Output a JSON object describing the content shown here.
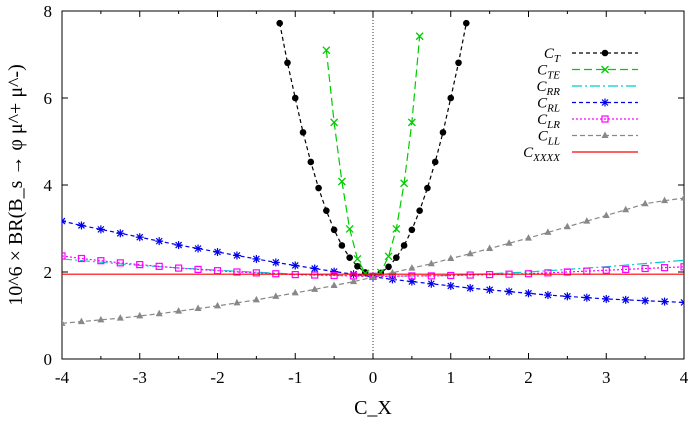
{
  "chart_data": {
    "type": "line",
    "xlabel": "C_X",
    "ylabel": "10^6 × BR(B_s → φ μ^+ μ^-)",
    "xlim": [
      -4,
      4
    ],
    "ylim": [
      0,
      8
    ],
    "xticks": [
      -4,
      -3,
      -2,
      -1,
      0,
      1,
      2,
      3,
      4
    ],
    "yticks": [
      0,
      2,
      4,
      6,
      8
    ],
    "xtick_labels": [
      "-4",
      "-3",
      "-2",
      "-1",
      "0",
      "1",
      "2",
      "3",
      "4"
    ],
    "ytick_labels": [
      "0",
      "2",
      "4",
      "6",
      "8"
    ],
    "vertical_reference_line": 0,
    "grid": false,
    "legend_position": "top-right",
    "series": [
      {
        "name": "C_T",
        "color": "#000000",
        "dash": "4,3",
        "marker": "dot",
        "x": [
          -1.2,
          -1.1,
          -1.0,
          -0.9,
          -0.8,
          -0.7,
          -0.6,
          -0.5,
          -0.4,
          -0.3,
          -0.2,
          -0.1,
          0,
          0.1,
          0.2,
          0.3,
          0.4,
          0.5,
          0.6,
          0.7,
          0.8,
          0.9,
          1.0,
          1.1,
          1.2
        ],
        "values": [
          7.72,
          6.81,
          6.0,
          5.21,
          4.53,
          3.93,
          3.41,
          2.97,
          2.61,
          2.33,
          2.13,
          1.99,
          1.9,
          1.98,
          2.12,
          2.33,
          2.61,
          2.97,
          3.41,
          3.93,
          4.53,
          5.21,
          6.0,
          6.81,
          7.72
        ]
      },
      {
        "name": "C_TE",
        "color": "#00cc00",
        "dash": "8,4",
        "marker": "x",
        "x": [
          -0.6,
          -0.5,
          -0.4,
          -0.3,
          -0.2,
          -0.1,
          0,
          0.1,
          0.2,
          0.3,
          0.4,
          0.5,
          0.6
        ],
        "values": [
          7.1,
          5.44,
          4.08,
          2.99,
          2.3,
          1.97,
          1.9,
          1.99,
          2.36,
          2.99,
          4.04,
          5.44,
          7.42
        ]
      },
      {
        "name": "C_RR",
        "color": "#00cccc",
        "dash": "10,3,2,3",
        "marker": "none",
        "x": [
          -4,
          -3,
          -2,
          -1,
          0,
          1,
          2,
          3,
          4
        ],
        "values": [
          2.3,
          2.15,
          2.04,
          1.95,
          1.9,
          1.92,
          2.0,
          2.12,
          2.27
        ]
      },
      {
        "name": "C_RL",
        "color": "#0000ee",
        "dash": "4,3",
        "marker": "asterisk",
        "x": [
          -4,
          -3.75,
          -3.5,
          -3.25,
          -3,
          -2.75,
          -2.5,
          -2.25,
          -2,
          -1.75,
          -1.5,
          -1.25,
          -1,
          -0.75,
          -0.5,
          -0.25,
          0,
          0.25,
          0.5,
          0.75,
          1,
          1.25,
          1.5,
          1.75,
          2,
          2.25,
          2.5,
          2.75,
          3,
          3.25,
          3.5,
          3.75,
          4
        ],
        "values": [
          3.17,
          3.07,
          2.98,
          2.89,
          2.8,
          2.71,
          2.62,
          2.54,
          2.46,
          2.38,
          2.3,
          2.22,
          2.15,
          2.08,
          2.01,
          1.95,
          1.89,
          1.83,
          1.78,
          1.73,
          1.68,
          1.63,
          1.59,
          1.55,
          1.51,
          1.47,
          1.44,
          1.41,
          1.38,
          1.36,
          1.34,
          1.32,
          1.3
        ]
      },
      {
        "name": "C_LR",
        "color": "#ff00ff",
        "dash": "2,2",
        "marker": "square",
        "x": [
          -4,
          -3.75,
          -3.5,
          -3.25,
          -3,
          -2.75,
          -2.5,
          -2.25,
          -2,
          -1.75,
          -1.5,
          -1.25,
          -1,
          -0.75,
          -0.5,
          -0.25,
          0,
          0.25,
          0.5,
          0.75,
          1,
          1.25,
          1.5,
          1.75,
          2,
          2.25,
          2.5,
          2.75,
          3,
          3.25,
          3.5,
          3.75,
          4
        ],
        "values": [
          2.37,
          2.31,
          2.26,
          2.21,
          2.17,
          2.13,
          2.09,
          2.06,
          2.03,
          2.0,
          1.98,
          1.96,
          1.94,
          1.93,
          1.92,
          1.91,
          1.9,
          1.9,
          1.91,
          1.91,
          1.92,
          1.93,
          1.94,
          1.95,
          1.96,
          1.98,
          2.0,
          2.02,
          2.04,
          2.06,
          2.08,
          2.1,
          2.12
        ]
      },
      {
        "name": "C_LL",
        "color": "#888888",
        "dash": "5,3",
        "marker": "triangle",
        "x": [
          -4,
          -3.75,
          -3.5,
          -3.25,
          -3,
          -2.75,
          -2.5,
          -2.25,
          -2,
          -1.75,
          -1.5,
          -1.25,
          -1,
          -0.75,
          -0.5,
          -0.25,
          0,
          0.25,
          0.5,
          0.75,
          1,
          1.25,
          1.5,
          1.75,
          2,
          2.25,
          2.5,
          2.75,
          3,
          3.25,
          3.5,
          3.75,
          4
        ],
        "values": [
          0.82,
          0.86,
          0.9,
          0.94,
          0.99,
          1.04,
          1.1,
          1.16,
          1.22,
          1.29,
          1.36,
          1.44,
          1.52,
          1.6,
          1.69,
          1.78,
          1.88,
          1.98,
          2.09,
          2.19,
          2.31,
          2.42,
          2.54,
          2.66,
          2.78,
          2.91,
          3.04,
          3.17,
          3.3,
          3.43,
          3.57,
          3.64,
          3.7
        ]
      },
      {
        "name": "C_XXXX",
        "color": "#ff0000",
        "dash": "",
        "marker": "none",
        "x": [
          -4,
          4
        ],
        "values": [
          1.95,
          1.95
        ]
      }
    ],
    "legend_labels": [
      {
        "base": "C",
        "sub": "T"
      },
      {
        "base": "C",
        "sub": "TE"
      },
      {
        "base": "C",
        "sub": "RR"
      },
      {
        "base": "C",
        "sub": "RL"
      },
      {
        "base": "C",
        "sub": "LR"
      },
      {
        "base": "C",
        "sub": "LL"
      },
      {
        "base": "C",
        "sub": "XXXX"
      }
    ]
  }
}
